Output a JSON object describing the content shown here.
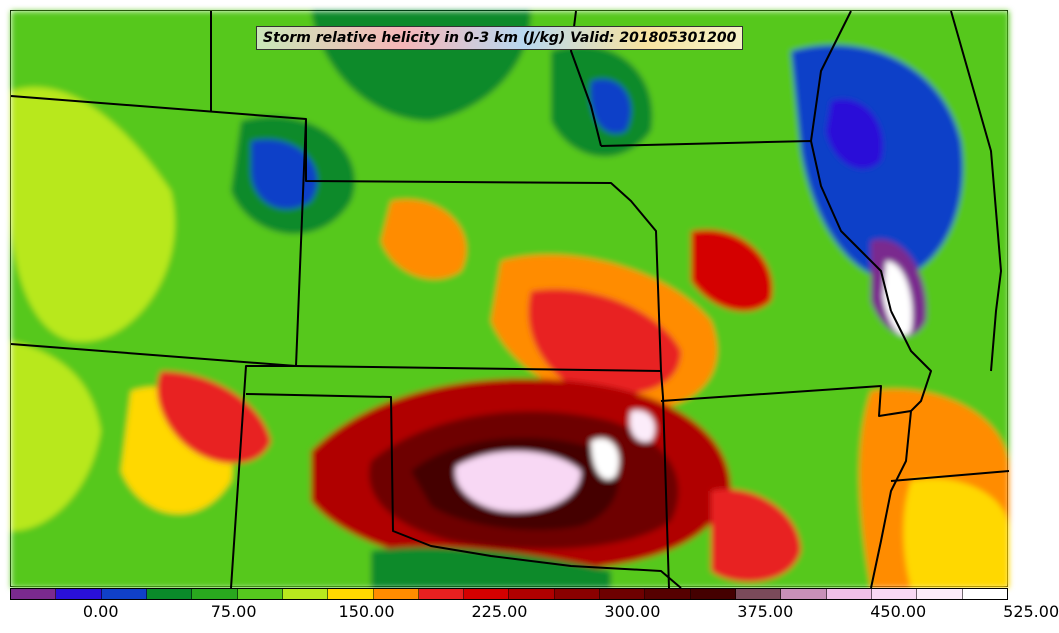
{
  "title": "Storm relative helicity in 0-3 km (J/kg) Valid: 201805301200",
  "colorbar": {
    "colors": [
      "#7a2a8e",
      "#2a10d8",
      "#1040c8",
      "#0a8a2a",
      "#29a81e",
      "#56c81e",
      "#b8e81e",
      "#ffd800",
      "#ff8c00",
      "#e82020",
      "#d40000",
      "#b00000",
      "#8a0000",
      "#6e0000",
      "#560000",
      "#440000",
      "#7a4a5a",
      "#c890b8",
      "#f0c0e8",
      "#f8d8f4",
      "#fcecfa",
      "#ffffff"
    ],
    "ticks": [
      "0.00",
      "75.00",
      "150.00",
      "225.00",
      "300.00",
      "375.00",
      "450.00",
      "525.00"
    ]
  }
}
